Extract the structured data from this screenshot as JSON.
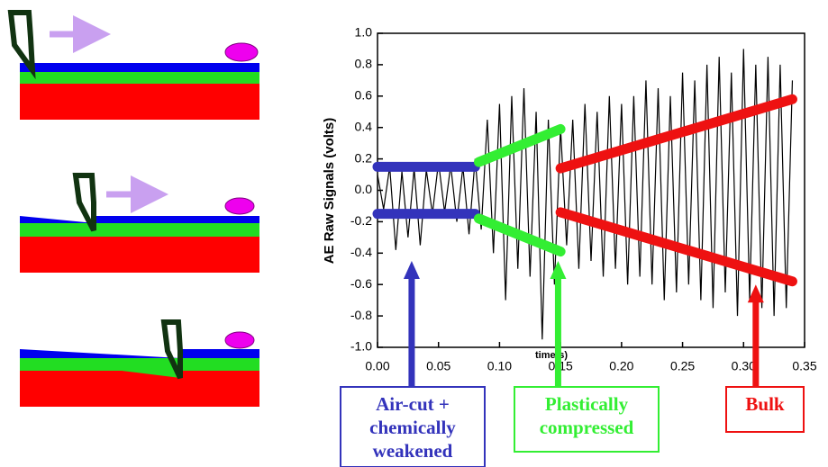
{
  "chart_data": {
    "type": "line",
    "y_label": "AE Raw Signals (volts)",
    "x_label": "time(s)",
    "xlim": [
      0,
      0.35
    ],
    "ylim": [
      -1.0,
      1.0
    ],
    "xticks": [
      {
        "value": 0,
        "label": "0.00"
      },
      {
        "value": 0.05,
        "label": "0.05"
      },
      {
        "value": 0.1,
        "label": "0.10"
      },
      {
        "value": 0.15,
        "label": "0.15"
      },
      {
        "value": 0.2,
        "label": "0.20"
      },
      {
        "value": 0.25,
        "label": "0.25"
      },
      {
        "value": 0.3,
        "label": "0.30"
      },
      {
        "value": 0.35,
        "label": "0.35"
      }
    ],
    "yticks": [
      {
        "value": -1.0,
        "label": "-1.0"
      },
      -0.8,
      -0.6,
      -0.4,
      -0.2,
      {
        "value": 0,
        "label": "0.0"
      },
      0.2,
      0.4,
      0.6,
      0.8,
      {
        "value": 1.0,
        "label": "1.0"
      }
    ],
    "x": [
      0,
      0.005,
      0.01,
      0.015,
      0.02,
      0.025,
      0.03,
      0.035,
      0.04,
      0.045,
      0.05,
      0.055,
      0.06,
      0.065,
      0.07,
      0.075,
      0.08,
      0.085,
      0.09,
      0.095,
      0.1,
      0.105,
      0.11,
      0.115,
      0.12,
      0.125,
      0.13,
      0.135,
      0.14,
      0.145,
      0.15,
      0.155,
      0.16,
      0.165,
      0.17,
      0.175,
      0.18,
      0.185,
      0.19,
      0.195,
      0.2,
      0.205,
      0.21,
      0.215,
      0.22,
      0.225,
      0.23,
      0.235,
      0.24,
      0.245,
      0.25,
      0.255,
      0.26,
      0.265,
      0.27,
      0.275,
      0.28,
      0.285,
      0.29,
      0.295,
      0.3,
      0.305,
      0.31,
      0.315,
      0.32,
      0.325,
      0.33,
      0.335,
      0.34
    ],
    "series": [
      {
        "color": "#000000",
        "values": [
          0.1,
          -0.12,
          0.15,
          -0.38,
          0.12,
          -0.3,
          0.14,
          -0.35,
          0.13,
          -0.15,
          0.18,
          -0.14,
          0.16,
          -0.2,
          0.15,
          -0.28,
          0.2,
          -0.25,
          0.45,
          -0.4,
          0.55,
          -0.7,
          0.6,
          -0.5,
          0.65,
          -0.55,
          0.5,
          -0.95,
          0.45,
          -0.6,
          0.4,
          -0.35,
          0.45,
          -0.5,
          0.55,
          -0.45,
          0.5,
          -0.55,
          0.6,
          -0.5,
          0.55,
          -0.6,
          0.6,
          -0.55,
          0.7,
          -0.6,
          0.65,
          -0.7,
          0.6,
          -0.65,
          0.75,
          -0.6,
          0.7,
          -0.7,
          0.8,
          -0.75,
          0.85,
          -0.65,
          0.75,
          -0.8,
          0.9,
          -0.7,
          0.8,
          -0.75,
          0.85,
          -0.8,
          0.8,
          -0.75,
          0.7
        ]
      }
    ],
    "trend_lines": [
      {
        "color": "#3333bb",
        "x": [
          0,
          0.08
        ],
        "values": [
          0.15,
          0.15
        ]
      },
      {
        "color": "#3333bb",
        "x": [
          0,
          0.08
        ],
        "values": [
          -0.15,
          -0.15
        ]
      },
      {
        "color": "#33ee33",
        "x": [
          0.083,
          0.15
        ],
        "values": [
          0.18,
          0.39
        ]
      },
      {
        "color": "#33ee33",
        "x": [
          0.083,
          0.15
        ],
        "values": [
          -0.18,
          -0.39
        ]
      },
      {
        "color": "#ee1111",
        "x": [
          0.15,
          0.34
        ],
        "values": [
          0.14,
          0.58
        ]
      },
      {
        "color": "#ee1111",
        "x": [
          0.15,
          0.34
        ],
        "values": [
          -0.14,
          -0.58
        ]
      }
    ],
    "arrows": [
      {
        "color": "#3333bb",
        "x": 0.028,
        "y": -0.45,
        "label": [
          "Air-cut +",
          "chemically",
          "weakened"
        ]
      },
      {
        "color": "#33ee33",
        "x": 0.148,
        "y": -0.45,
        "label": [
          "Plastically",
          "compressed"
        ]
      },
      {
        "color": "#ee1111",
        "x": 0.31,
        "y": -0.6,
        "label": [
          "Bulk"
        ]
      }
    ]
  }
}
